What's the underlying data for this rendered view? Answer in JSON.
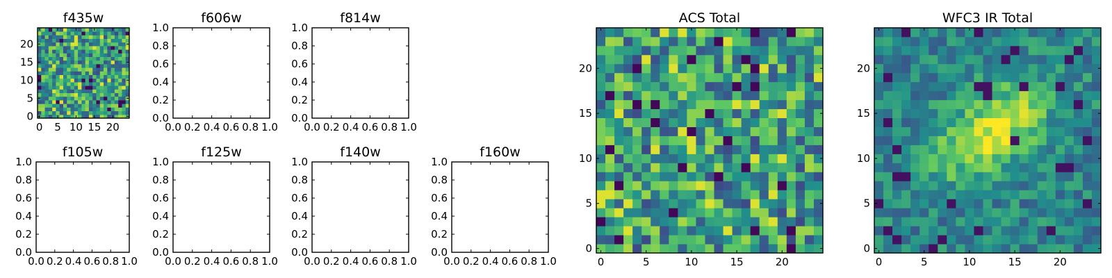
{
  "chart_data": [
    {
      "title": "f435w",
      "type": "heatmap",
      "grid": false,
      "extent": [
        -0.5,
        24.5
      ],
      "xticks": [
        "0",
        "5",
        "10",
        "15",
        "20"
      ],
      "yticks": [
        "0",
        "5",
        "10",
        "15",
        "20"
      ],
      "image": "noise"
    },
    {
      "title": "f606w",
      "type": "empty",
      "xticks": [
        "0.0",
        "0.2",
        "0.4",
        "0.6",
        "0.8",
        "1.0"
      ],
      "yticks": [
        "0.0",
        "0.2",
        "0.4",
        "0.6",
        "0.8",
        "1.0"
      ],
      "xlim": [
        0,
        1
      ],
      "ylim": [
        0,
        1
      ]
    },
    {
      "title": "f814w",
      "type": "empty",
      "xticks": [
        "0.0",
        "0.2",
        "0.4",
        "0.6",
        "0.8",
        "1.0"
      ],
      "yticks": [
        "0.0",
        "0.2",
        "0.4",
        "0.6",
        "0.8",
        "1.0"
      ],
      "xlim": [
        0,
        1
      ],
      "ylim": [
        0,
        1
      ]
    },
    {
      "title": "f105w",
      "type": "empty",
      "xticks": [
        "0.0",
        "0.2",
        "0.4",
        "0.6",
        "0.8",
        "1.0"
      ],
      "yticks": [
        "0.0",
        "0.2",
        "0.4",
        "0.6",
        "0.8",
        "1.0"
      ],
      "xlim": [
        0,
        1
      ],
      "ylim": [
        0,
        1
      ]
    },
    {
      "title": "f125w",
      "type": "empty",
      "xticks": [
        "0.0",
        "0.2",
        "0.4",
        "0.6",
        "0.8",
        "1.0"
      ],
      "yticks": [
        "0.0",
        "0.2",
        "0.4",
        "0.6",
        "0.8",
        "1.0"
      ],
      "xlim": [
        0,
        1
      ],
      "ylim": [
        0,
        1
      ]
    },
    {
      "title": "f140w",
      "type": "empty",
      "xticks": [
        "0.0",
        "0.2",
        "0.4",
        "0.6",
        "0.8",
        "1.0"
      ],
      "yticks": [
        "0.0",
        "0.2",
        "0.4",
        "0.6",
        "0.8",
        "1.0"
      ],
      "xlim": [
        0,
        1
      ],
      "ylim": [
        0,
        1
      ]
    },
    {
      "title": "f160w",
      "type": "empty",
      "xticks": [
        "0.0",
        "0.2",
        "0.4",
        "0.6",
        "0.8",
        "1.0"
      ],
      "yticks": [
        "0.0",
        "0.2",
        "0.4",
        "0.6",
        "0.8",
        "1.0"
      ],
      "xlim": [
        0,
        1
      ],
      "ylim": [
        0,
        1
      ]
    },
    {
      "title": "ACS Total",
      "type": "heatmap",
      "grid": false,
      "extent": [
        -0.5,
        24.5
      ],
      "xticks": [
        "0",
        "5",
        "10",
        "15",
        "20"
      ],
      "yticks": [
        "0",
        "5",
        "10",
        "15",
        "20"
      ],
      "image": "noise"
    },
    {
      "title": "WFC3 IR Total",
      "type": "heatmap",
      "grid": false,
      "extent": [
        -0.5,
        24.5
      ],
      "xticks": [
        "0",
        "5",
        "10",
        "15",
        "20"
      ],
      "yticks": [
        "0",
        "5",
        "10",
        "15",
        "20"
      ],
      "image": "blob"
    }
  ],
  "colormap": [
    "#440154",
    "#3b528b",
    "#21918c",
    "#5ec962",
    "#fde725"
  ]
}
